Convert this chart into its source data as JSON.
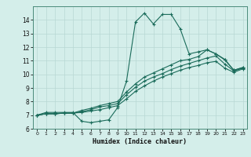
{
  "xlabel": "Humidex (Indice chaleur)",
  "xlim": [
    -0.5,
    23.5
  ],
  "ylim": [
    6,
    15
  ],
  "yticks": [
    6,
    7,
    8,
    9,
    10,
    11,
    12,
    13,
    14
  ],
  "xticks": [
    0,
    1,
    2,
    3,
    4,
    5,
    6,
    7,
    8,
    9,
    10,
    11,
    12,
    13,
    14,
    15,
    16,
    17,
    18,
    19,
    20,
    21,
    22,
    23
  ],
  "bg_color": "#d4eeea",
  "grid_color": "#b8d8d4",
  "line_color": "#1a6b5a",
  "curve1_x": [
    0,
    1,
    2,
    3,
    4,
    5,
    6,
    7,
    8,
    9,
    10,
    11,
    12,
    13,
    14,
    15,
    16,
    17,
    18,
    19,
    20,
    21,
    22,
    23
  ],
  "curve1_y": [
    7.0,
    7.2,
    7.2,
    7.2,
    7.2,
    6.55,
    6.45,
    6.55,
    6.65,
    7.55,
    9.5,
    13.85,
    14.5,
    13.7,
    14.4,
    14.4,
    13.35,
    11.5,
    11.65,
    11.8,
    11.5,
    11.1,
    10.3,
    10.5
  ],
  "curve2_x": [
    0,
    1,
    2,
    3,
    4,
    5,
    6,
    7,
    8,
    9,
    10,
    11,
    12,
    13,
    14,
    15,
    16,
    17,
    18,
    19,
    20,
    21,
    22,
    23
  ],
  "curve2_y": [
    7.0,
    7.1,
    7.1,
    7.15,
    7.15,
    7.2,
    7.3,
    7.4,
    7.55,
    7.7,
    8.2,
    8.75,
    9.15,
    9.5,
    9.8,
    10.05,
    10.3,
    10.5,
    10.65,
    10.85,
    10.95,
    10.45,
    10.15,
    10.4
  ],
  "curve3_x": [
    0,
    1,
    2,
    3,
    4,
    5,
    6,
    7,
    8,
    9,
    10,
    11,
    12,
    13,
    14,
    15,
    16,
    17,
    18,
    19,
    20,
    21,
    22,
    23
  ],
  "curve3_y": [
    7.0,
    7.1,
    7.1,
    7.15,
    7.15,
    7.25,
    7.4,
    7.6,
    7.7,
    7.85,
    8.5,
    9.05,
    9.5,
    9.8,
    10.05,
    10.35,
    10.6,
    10.8,
    11.0,
    11.2,
    11.35,
    10.75,
    10.25,
    10.45
  ],
  "curve4_x": [
    0,
    1,
    2,
    3,
    4,
    5,
    6,
    7,
    8,
    9,
    10,
    11,
    12,
    13,
    14,
    15,
    16,
    17,
    18,
    19,
    20,
    21,
    22,
    23
  ],
  "curve4_y": [
    7.0,
    7.1,
    7.1,
    7.15,
    7.15,
    7.35,
    7.5,
    7.7,
    7.85,
    8.0,
    8.7,
    9.3,
    9.8,
    10.1,
    10.4,
    10.7,
    11.0,
    11.1,
    11.3,
    11.8,
    11.5,
    11.05,
    10.3,
    10.5
  ]
}
